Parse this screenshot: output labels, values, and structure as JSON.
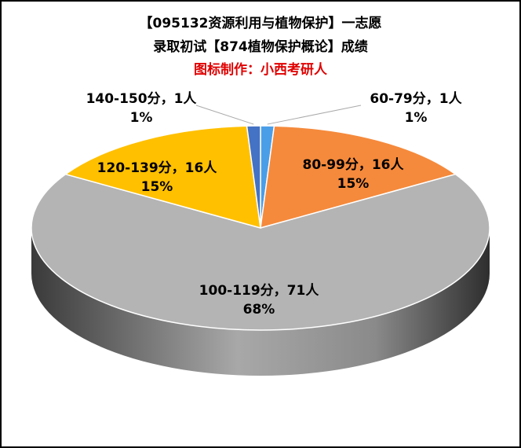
{
  "chart_data": {
    "type": "pie3d",
    "title": [
      "【095132资源利用与植物保护】一志愿",
      "录取初试【874植物保护概论】成绩"
    ],
    "subtitle": "图标制作：小西考研人",
    "series": [
      {
        "values": [
          1,
          16,
          71,
          16,
          1
        ],
        "value_labels": [
          "60-79分，1人",
          "80-99分，16人",
          "100-119分，71人",
          "120-139分，16人",
          "140-150分，1人"
        ],
        "colors": [
          "#4a9ee8",
          "#f58a3c",
          "#b4b4b4",
          "#ffc000",
          "#4472c4"
        ]
      }
    ],
    "percents": [
      1,
      15,
      68,
      15,
      1
    ],
    "percent_labels": [
      "1%",
      "15%",
      "68%",
      "15%",
      "1%"
    ]
  }
}
